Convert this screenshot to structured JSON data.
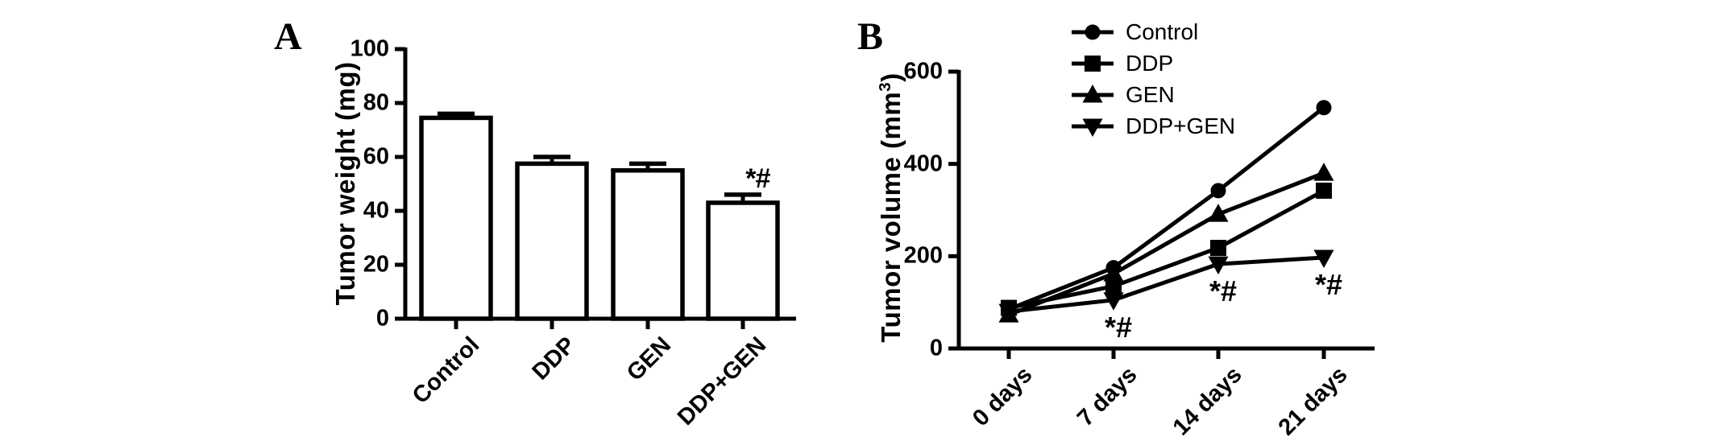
{
  "colors": {
    "ink": "#000000",
    "background": "#ffffff"
  },
  "chart_data": [
    {
      "id": "panel_a",
      "panel_label": "A",
      "type": "bar",
      "title": "",
      "xlabel": "",
      "ylabel": "Tumor weight (mg)",
      "ylim": [
        0,
        100
      ],
      "yticks": [
        0,
        20,
        40,
        60,
        80,
        100
      ],
      "categories": [
        "Control",
        "DDP",
        "GEN",
        "DDP+GEN"
      ],
      "values": [
        74.5,
        57.5,
        55,
        43
      ],
      "errors_plus": [
        1.5,
        2.5,
        2.5,
        3
      ],
      "bar_fill": "#ffffff",
      "bar_stroke": "#000000",
      "grid": false,
      "annotations": [
        {
          "text": "*#",
          "category_index": 3,
          "style": "italic",
          "position": "above-error-bar"
        }
      ]
    },
    {
      "id": "panel_b",
      "panel_label": "B",
      "type": "line",
      "title": "",
      "xlabel": "",
      "ylabel_plain": "Tumor volume (mm3)",
      "ylabel_parts": [
        {
          "text": "Tumor volume (mm"
        },
        {
          "text": "3",
          "superscript": true
        },
        {
          "text": ")"
        }
      ],
      "ylim": [
        0,
        600
      ],
      "yticks": [
        0,
        200,
        400,
        600
      ],
      "categories": [
        "0 days",
        "7 days",
        "14 days",
        "21 days"
      ],
      "series": [
        {
          "name": "Control",
          "marker": "circle",
          "values": [
            85,
            175,
            342,
            522
          ]
        },
        {
          "name": "DDP",
          "marker": "square",
          "values": [
            88,
            135,
            218,
            342
          ]
        },
        {
          "name": "GEN",
          "marker": "triangle-up",
          "values": [
            73,
            162,
            291,
            380
          ]
        },
        {
          "name": "DDP+GEN",
          "marker": "triangle-down",
          "values": [
            80,
            105,
            183,
            197
          ]
        }
      ],
      "legend": [
        "Control",
        "DDP",
        "GEN",
        "DDP+GEN"
      ],
      "legend_position": "top-right",
      "grid": false,
      "annotations": [
        {
          "text": "*#",
          "x_index": 1,
          "attached_series": "DDP+GEN",
          "position": "below-point"
        },
        {
          "text": "*#",
          "x_index": 2,
          "attached_series": "DDP+GEN",
          "position": "below-point"
        },
        {
          "text": "*#",
          "x_index": 3,
          "attached_series": "DDP+GEN",
          "position": "below-point"
        }
      ]
    }
  ]
}
